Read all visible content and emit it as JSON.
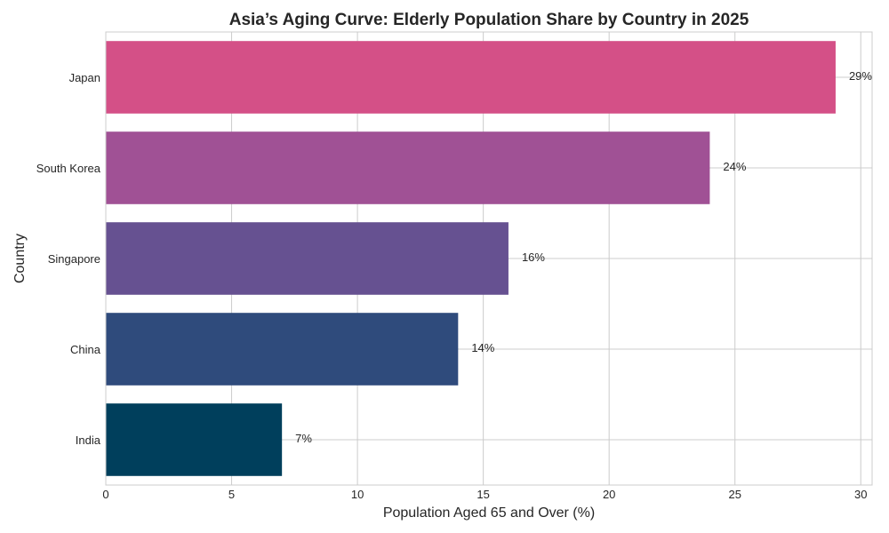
{
  "chart_data": {
    "type": "bar",
    "orientation": "horizontal",
    "title": "Asia’s Aging Curve: Elderly Population Share by Country in 2025",
    "xlabel": "Population Aged 65 and Over (%)",
    "ylabel": "Country",
    "categories": [
      "Japan",
      "South Korea",
      "Singapore",
      "China",
      "India"
    ],
    "values": [
      29,
      24,
      16,
      14,
      7
    ],
    "data_labels": [
      "29%",
      "24%",
      "16%",
      "14%",
      "7%"
    ],
    "colors": [
      "#d45087",
      "#a05195",
      "#665191",
      "#2f4b7c",
      "#003f5c"
    ],
    "xlim": [
      0,
      30.45
    ],
    "xticks": [
      0,
      5,
      10,
      15,
      20,
      25,
      30
    ],
    "grid": true
  }
}
